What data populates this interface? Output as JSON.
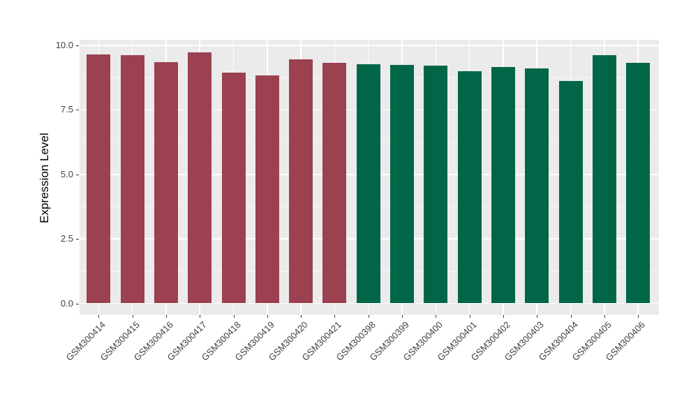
{
  "style": {
    "figure_bg": "#FFFFFF",
    "panel_bg": "#EBEBEB",
    "grid_color": "#FFFFFF",
    "tick_color": "#333333",
    "axis_text_color": "#404040",
    "axis_title_color": "#000000",
    "bar_color_left_group": "#9B4150",
    "bar_color_right_group": "#006647"
  },
  "chart_data": {
    "type": "bar",
    "title": "",
    "xlabel": "",
    "ylabel": "Expression Level",
    "ylim": [
      0,
      10
    ],
    "yticks": [
      0.0,
      2.5,
      5.0,
      7.5,
      10.0
    ],
    "ytick_labels": [
      "0.0",
      "2.5",
      "5.0",
      "7.5",
      "10.0"
    ],
    "yticks_minor": [
      1.25,
      3.75,
      6.25,
      8.75
    ],
    "grid": "on",
    "legend_position": "none",
    "x_tick_angle_deg": 45,
    "categories": [
      "GSM300414",
      "GSM300415",
      "GSM300416",
      "GSM300417",
      "GSM300418",
      "GSM300419",
      "GSM300420",
      "GSM300421",
      "GSM300398",
      "GSM300399",
      "GSM300400",
      "GSM300401",
      "GSM300402",
      "GSM300403",
      "GSM300404",
      "GSM300405",
      "GSM300406"
    ],
    "bars": [
      {
        "label": "GSM300414",
        "value": 9.66,
        "color": "#9B4150"
      },
      {
        "label": "GSM300415",
        "value": 9.63,
        "color": "#9B4150"
      },
      {
        "label": "GSM300416",
        "value": 9.36,
        "color": "#9B4150"
      },
      {
        "label": "GSM300417",
        "value": 9.74,
        "color": "#9B4150"
      },
      {
        "label": "GSM300418",
        "value": 8.95,
        "color": "#9B4150"
      },
      {
        "label": "GSM300419",
        "value": 8.83,
        "color": "#9B4150"
      },
      {
        "label": "GSM300420",
        "value": 9.45,
        "color": "#9B4150"
      },
      {
        "label": "GSM300421",
        "value": 9.33,
        "color": "#9B4150"
      },
      {
        "label": "GSM300398",
        "value": 9.27,
        "color": "#006647"
      },
      {
        "label": "GSM300399",
        "value": 9.23,
        "color": "#006647"
      },
      {
        "label": "GSM300400",
        "value": 9.21,
        "color": "#006647"
      },
      {
        "label": "GSM300401",
        "value": 9.0,
        "color": "#006647"
      },
      {
        "label": "GSM300402",
        "value": 9.16,
        "color": "#006647"
      },
      {
        "label": "GSM300403",
        "value": 9.12,
        "color": "#006647"
      },
      {
        "label": "GSM300404",
        "value": 8.62,
        "color": "#006647"
      },
      {
        "label": "GSM300405",
        "value": 9.63,
        "color": "#006647"
      },
      {
        "label": "GSM300406",
        "value": 9.33,
        "color": "#006647"
      }
    ]
  }
}
